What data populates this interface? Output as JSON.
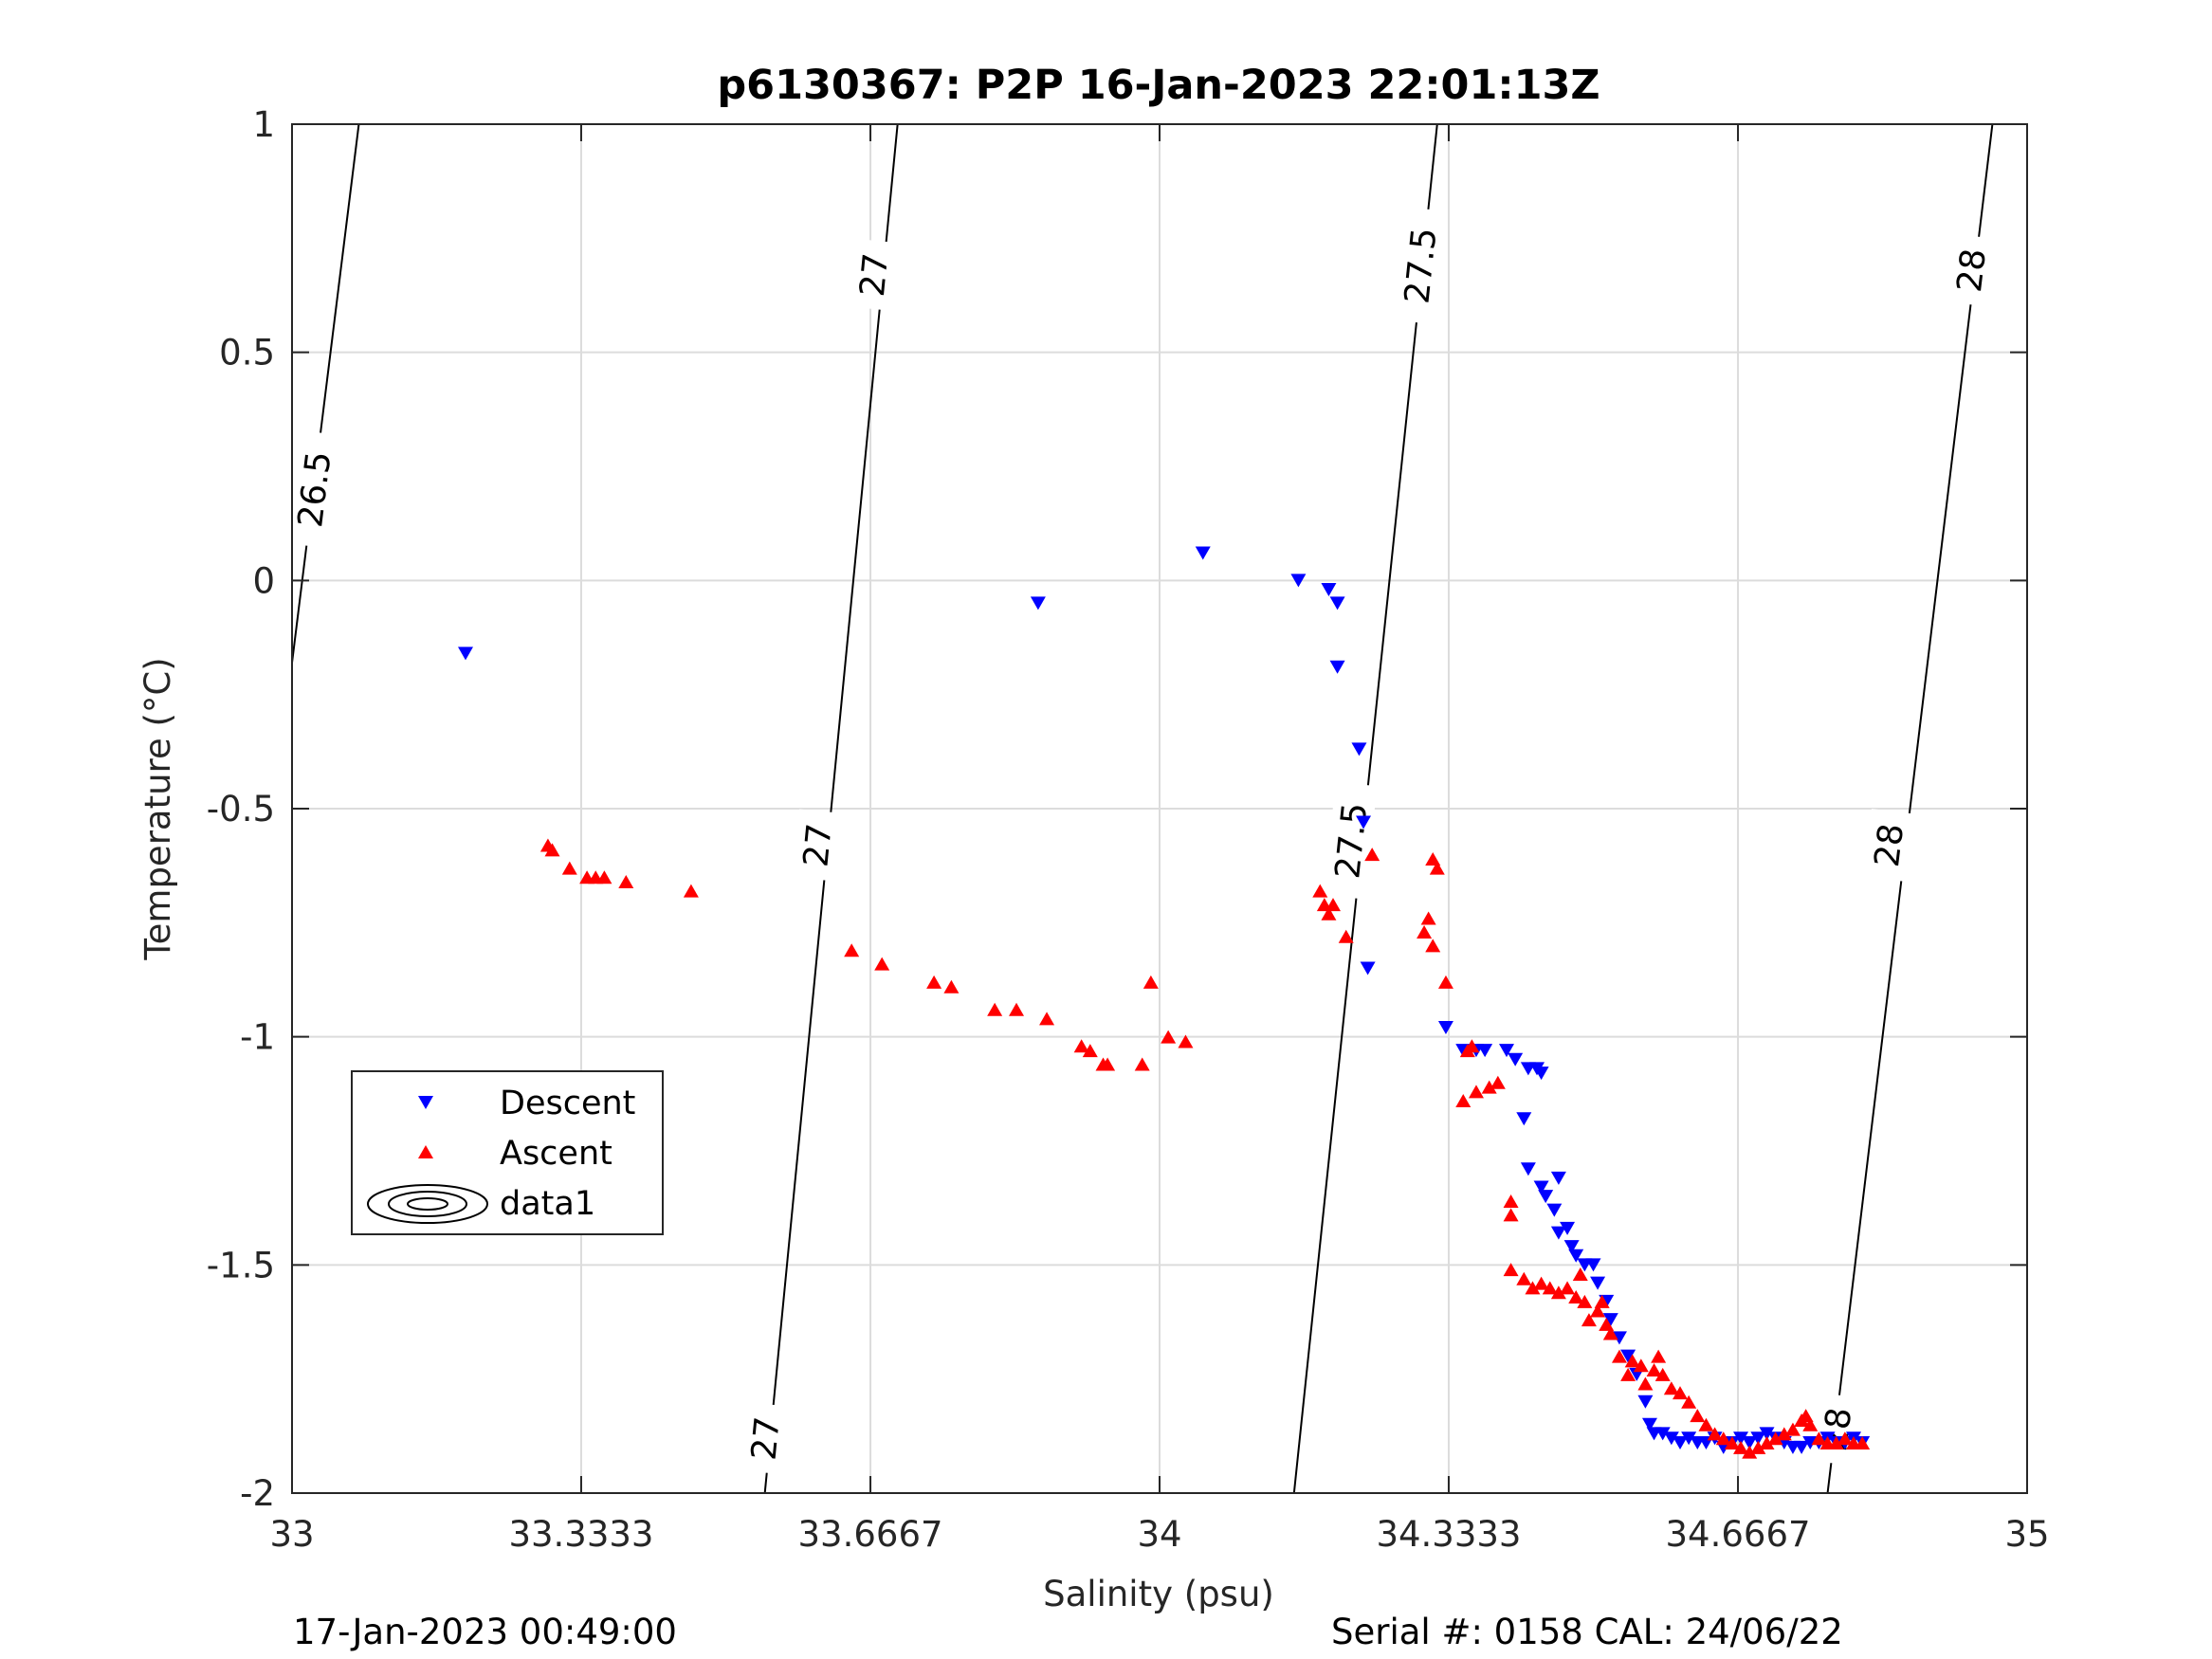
{
  "chart_data": {
    "type": "scatter",
    "title": "p6130367: P2P 16-Jan-2023 22:01:13Z",
    "xlabel": "Salinity (psu)",
    "ylabel": "Temperature (°C)",
    "xlim": [
      33,
      35
    ],
    "ylim": [
      -2,
      1
    ],
    "xticks": [
      33,
      33.3333,
      33.6667,
      34,
      34.3333,
      34.6667,
      35
    ],
    "xtick_labels": [
      "33",
      "33.3333",
      "33.6667",
      "34",
      "34.3333",
      "34.6667",
      "35"
    ],
    "yticks": [
      -2,
      -1.5,
      -1,
      -0.5,
      0,
      0.5,
      1
    ],
    "ytick_labels": [
      "-2",
      "-1.5",
      "-1",
      "-0.5",
      "0",
      "0.5",
      "1"
    ],
    "grid": true,
    "legend_position": "lower-left",
    "legend": [
      "Descent",
      "Ascent",
      "data1"
    ],
    "series": [
      {
        "name": "Descent",
        "marker": "triangle-down",
        "color": "#0000ff",
        "points": [
          [
            33.2,
            -0.16
          ],
          [
            33.86,
            -0.05
          ],
          [
            34.05,
            0.06
          ],
          [
            34.16,
            0.0
          ],
          [
            34.195,
            -0.02
          ],
          [
            34.205,
            -0.05
          ],
          [
            34.205,
            -0.19
          ],
          [
            34.23,
            -0.37
          ],
          [
            34.235,
            -0.53
          ],
          [
            34.24,
            -0.85
          ],
          [
            34.33,
            -0.98
          ],
          [
            34.35,
            -1.03
          ],
          [
            34.365,
            -1.03
          ],
          [
            34.375,
            -1.03
          ],
          [
            34.4,
            -1.03
          ],
          [
            34.41,
            -1.05
          ],
          [
            34.42,
            -1.18
          ],
          [
            34.425,
            -1.07
          ],
          [
            34.435,
            -1.07
          ],
          [
            34.44,
            -1.08
          ],
          [
            34.425,
            -1.29
          ],
          [
            34.44,
            -1.33
          ],
          [
            34.445,
            -1.35
          ],
          [
            34.46,
            -1.31
          ],
          [
            34.455,
            -1.38
          ],
          [
            34.46,
            -1.43
          ],
          [
            34.47,
            -1.42
          ],
          [
            34.475,
            -1.46
          ],
          [
            34.48,
            -1.48
          ],
          [
            34.49,
            -1.5
          ],
          [
            34.5,
            -1.5
          ],
          [
            34.505,
            -1.54
          ],
          [
            34.515,
            -1.58
          ],
          [
            34.52,
            -1.62
          ],
          [
            34.53,
            -1.66
          ],
          [
            34.54,
            -1.7
          ],
          [
            34.55,
            -1.74
          ],
          [
            34.56,
            -1.8
          ],
          [
            34.565,
            -1.85
          ],
          [
            34.57,
            -1.87
          ],
          [
            34.58,
            -1.87
          ],
          [
            34.59,
            -1.88
          ],
          [
            34.6,
            -1.89
          ],
          [
            34.61,
            -1.88
          ],
          [
            34.62,
            -1.89
          ],
          [
            34.63,
            -1.89
          ],
          [
            34.64,
            -1.88
          ],
          [
            34.65,
            -1.9
          ],
          [
            34.66,
            -1.89
          ],
          [
            34.67,
            -1.88
          ],
          [
            34.68,
            -1.89
          ],
          [
            34.69,
            -1.88
          ],
          [
            34.7,
            -1.87
          ],
          [
            34.71,
            -1.88
          ],
          [
            34.72,
            -1.89
          ],
          [
            34.73,
            -1.9
          ],
          [
            34.74,
            -1.9
          ],
          [
            34.75,
            -1.89
          ],
          [
            34.76,
            -1.89
          ],
          [
            34.77,
            -1.88
          ],
          [
            34.78,
            -1.89
          ],
          [
            34.79,
            -1.89
          ],
          [
            34.8,
            -1.88
          ],
          [
            34.81,
            -1.89
          ]
        ]
      },
      {
        "name": "Ascent",
        "marker": "triangle-up",
        "color": "#ff0000",
        "points": [
          [
            33.295,
            -0.58
          ],
          [
            33.3,
            -0.59
          ],
          [
            33.32,
            -0.63
          ],
          [
            33.34,
            -0.65
          ],
          [
            33.35,
            -0.65
          ],
          [
            33.36,
            -0.65
          ],
          [
            33.385,
            -0.66
          ],
          [
            33.46,
            -0.68
          ],
          [
            33.645,
            -0.81
          ],
          [
            33.68,
            -0.84
          ],
          [
            33.74,
            -0.88
          ],
          [
            33.76,
            -0.89
          ],
          [
            33.81,
            -0.94
          ],
          [
            33.835,
            -0.94
          ],
          [
            33.87,
            -0.96
          ],
          [
            33.91,
            -1.02
          ],
          [
            33.92,
            -1.03
          ],
          [
            33.935,
            -1.06
          ],
          [
            33.94,
            -1.06
          ],
          [
            33.98,
            -1.06
          ],
          [
            33.99,
            -0.88
          ],
          [
            34.01,
            -1.0
          ],
          [
            34.03,
            -1.01
          ],
          [
            34.185,
            -0.68
          ],
          [
            34.19,
            -0.71
          ],
          [
            34.195,
            -0.73
          ],
          [
            34.2,
            -0.71
          ],
          [
            34.215,
            -0.78
          ],
          [
            34.245,
            -0.6
          ],
          [
            34.315,
            -0.61
          ],
          [
            34.32,
            -0.63
          ],
          [
            34.31,
            -0.74
          ],
          [
            34.305,
            -0.77
          ],
          [
            34.315,
            -0.8
          ],
          [
            34.33,
            -0.88
          ],
          [
            34.35,
            -1.14
          ],
          [
            34.355,
            -1.03
          ],
          [
            34.36,
            -1.02
          ],
          [
            34.365,
            -1.12
          ],
          [
            34.38,
            -1.11
          ],
          [
            34.39,
            -1.1
          ],
          [
            34.405,
            -1.36
          ],
          [
            34.405,
            -1.39
          ],
          [
            34.405,
            -1.51
          ],
          [
            34.42,
            -1.53
          ],
          [
            34.43,
            -1.55
          ],
          [
            34.44,
            -1.54
          ],
          [
            34.45,
            -1.55
          ],
          [
            34.46,
            -1.56
          ],
          [
            34.47,
            -1.55
          ],
          [
            34.48,
            -1.57
          ],
          [
            34.485,
            -1.52
          ],
          [
            34.49,
            -1.58
          ],
          [
            34.495,
            -1.62
          ],
          [
            34.505,
            -1.6
          ],
          [
            34.51,
            -1.58
          ],
          [
            34.515,
            -1.63
          ],
          [
            34.52,
            -1.65
          ],
          [
            34.53,
            -1.7
          ],
          [
            34.54,
            -1.74
          ],
          [
            34.545,
            -1.71
          ],
          [
            34.555,
            -1.72
          ],
          [
            34.56,
            -1.76
          ],
          [
            34.57,
            -1.73
          ],
          [
            34.575,
            -1.7
          ],
          [
            34.58,
            -1.74
          ],
          [
            34.59,
            -1.77
          ],
          [
            34.6,
            -1.78
          ],
          [
            34.61,
            -1.8
          ],
          [
            34.62,
            -1.83
          ],
          [
            34.63,
            -1.85
          ],
          [
            34.64,
            -1.87
          ],
          [
            34.65,
            -1.88
          ],
          [
            34.66,
            -1.89
          ],
          [
            34.67,
            -1.9
          ],
          [
            34.68,
            -1.91
          ],
          [
            34.69,
            -1.9
          ],
          [
            34.7,
            -1.89
          ],
          [
            34.71,
            -1.88
          ],
          [
            34.72,
            -1.87
          ],
          [
            34.73,
            -1.86
          ],
          [
            34.74,
            -1.84
          ],
          [
            34.745,
            -1.83
          ],
          [
            34.75,
            -1.85
          ],
          [
            34.76,
            -1.88
          ],
          [
            34.77,
            -1.89
          ],
          [
            34.78,
            -1.89
          ],
          [
            34.79,
            -1.88
          ],
          [
            34.8,
            -1.89
          ],
          [
            34.81,
            -1.89
          ]
        ]
      }
    ],
    "contours": [
      {
        "level": "26.5",
        "label": "26.5",
        "line": [
          [
            33.0,
            -0.18
          ],
          [
            33.077,
            1.0
          ]
        ],
        "label_at": [
          [
            33.025,
            0.2
          ]
        ]
      },
      {
        "level": "27",
        "label": "27",
        "line": [
          [
            33.545,
            -2.0
          ],
          [
            33.698,
            1.0
          ]
        ],
        "label_at": [
          [
            33.545,
            -1.88
          ],
          [
            33.605,
            -0.58
          ],
          [
            33.67,
            0.67
          ]
        ]
      },
      {
        "level": "27.5",
        "label": "27.5",
        "line": [
          [
            34.155,
            -2.0
          ],
          [
            34.32,
            1.0
          ]
        ],
        "label_at": [
          [
            34.22,
            -0.57
          ],
          [
            34.3,
            0.69
          ]
        ]
      },
      {
        "level": "28",
        "label": "28",
        "line": [
          [
            34.77,
            -2.0
          ],
          [
            34.96,
            1.0
          ]
        ],
        "label_at": [
          [
            34.78,
            -1.86
          ],
          [
            34.84,
            -0.58
          ],
          [
            34.935,
            0.68
          ]
        ]
      }
    ]
  },
  "footer": {
    "left": "17-Jan-2023 00:49:00",
    "right": "Serial #: 0158  CAL: 24/06/22"
  },
  "colors": {
    "descent": "#0000ff",
    "ascent": "#ff0000",
    "grid": "#dcdcdc",
    "axis": "#262626"
  }
}
